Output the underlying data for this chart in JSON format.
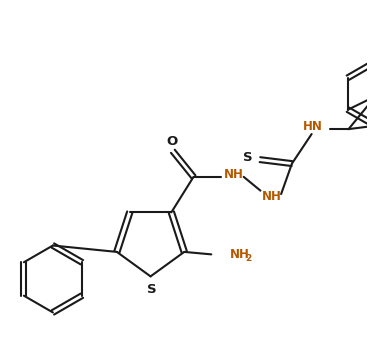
{
  "bg_color": "#ffffff",
  "line_color": "#1a1a1a",
  "heteroatom_color": "#b35900",
  "bond_lw": 1.5,
  "figsize": [
    3.7,
    3.52
  ],
  "dpi": 100,
  "xlim": [
    0,
    7.4
  ],
  "ylim": [
    0,
    7.04
  ]
}
